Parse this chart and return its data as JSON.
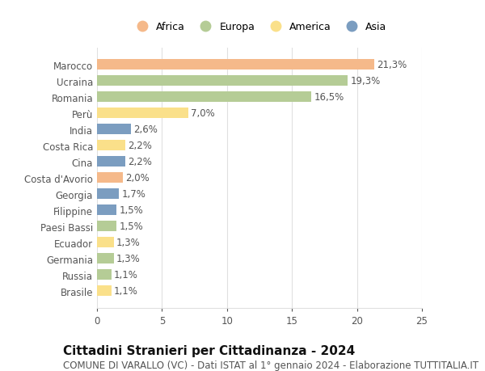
{
  "categories": [
    "Brasile",
    "Russia",
    "Germania",
    "Ecuador",
    "Paesi Bassi",
    "Filippine",
    "Georgia",
    "Costa d'Avorio",
    "Cina",
    "Costa Rica",
    "India",
    "Perù",
    "Romania",
    "Ucraina",
    "Marocco"
  ],
  "values": [
    1.1,
    1.1,
    1.3,
    1.3,
    1.5,
    1.5,
    1.7,
    2.0,
    2.2,
    2.2,
    2.6,
    7.0,
    16.5,
    19.3,
    21.3
  ],
  "labels": [
    "1,1%",
    "1,1%",
    "1,3%",
    "1,3%",
    "1,5%",
    "1,5%",
    "1,7%",
    "2,0%",
    "2,2%",
    "2,2%",
    "2,6%",
    "7,0%",
    "16,5%",
    "19,3%",
    "21,3%"
  ],
  "continents": [
    "America",
    "Europa",
    "Europa",
    "America",
    "Europa",
    "Asia",
    "Asia",
    "Africa",
    "Asia",
    "America",
    "Asia",
    "America",
    "Europa",
    "Europa",
    "Africa"
  ],
  "colors": {
    "Africa": "#F5B98A",
    "Europa": "#B5CC96",
    "America": "#FAE08A",
    "Asia": "#7B9DC0"
  },
  "legend_order": [
    "Africa",
    "Europa",
    "America",
    "Asia"
  ],
  "xlim": [
    0,
    25
  ],
  "xticks": [
    0,
    5,
    10,
    15,
    20,
    25
  ],
  "title": "Cittadini Stranieri per Cittadinanza - 2024",
  "subtitle": "COMUNE DI VARALLO (VC) - Dati ISTAT al 1° gennaio 2024 - Elaborazione TUTTITALIA.IT",
  "background_color": "#ffffff",
  "grid_color": "#e0e0e0",
  "bar_height": 0.65,
  "label_fontsize": 8.5,
  "tick_fontsize": 8.5,
  "title_fontsize": 11,
  "subtitle_fontsize": 8.5,
  "legend_fontsize": 9
}
